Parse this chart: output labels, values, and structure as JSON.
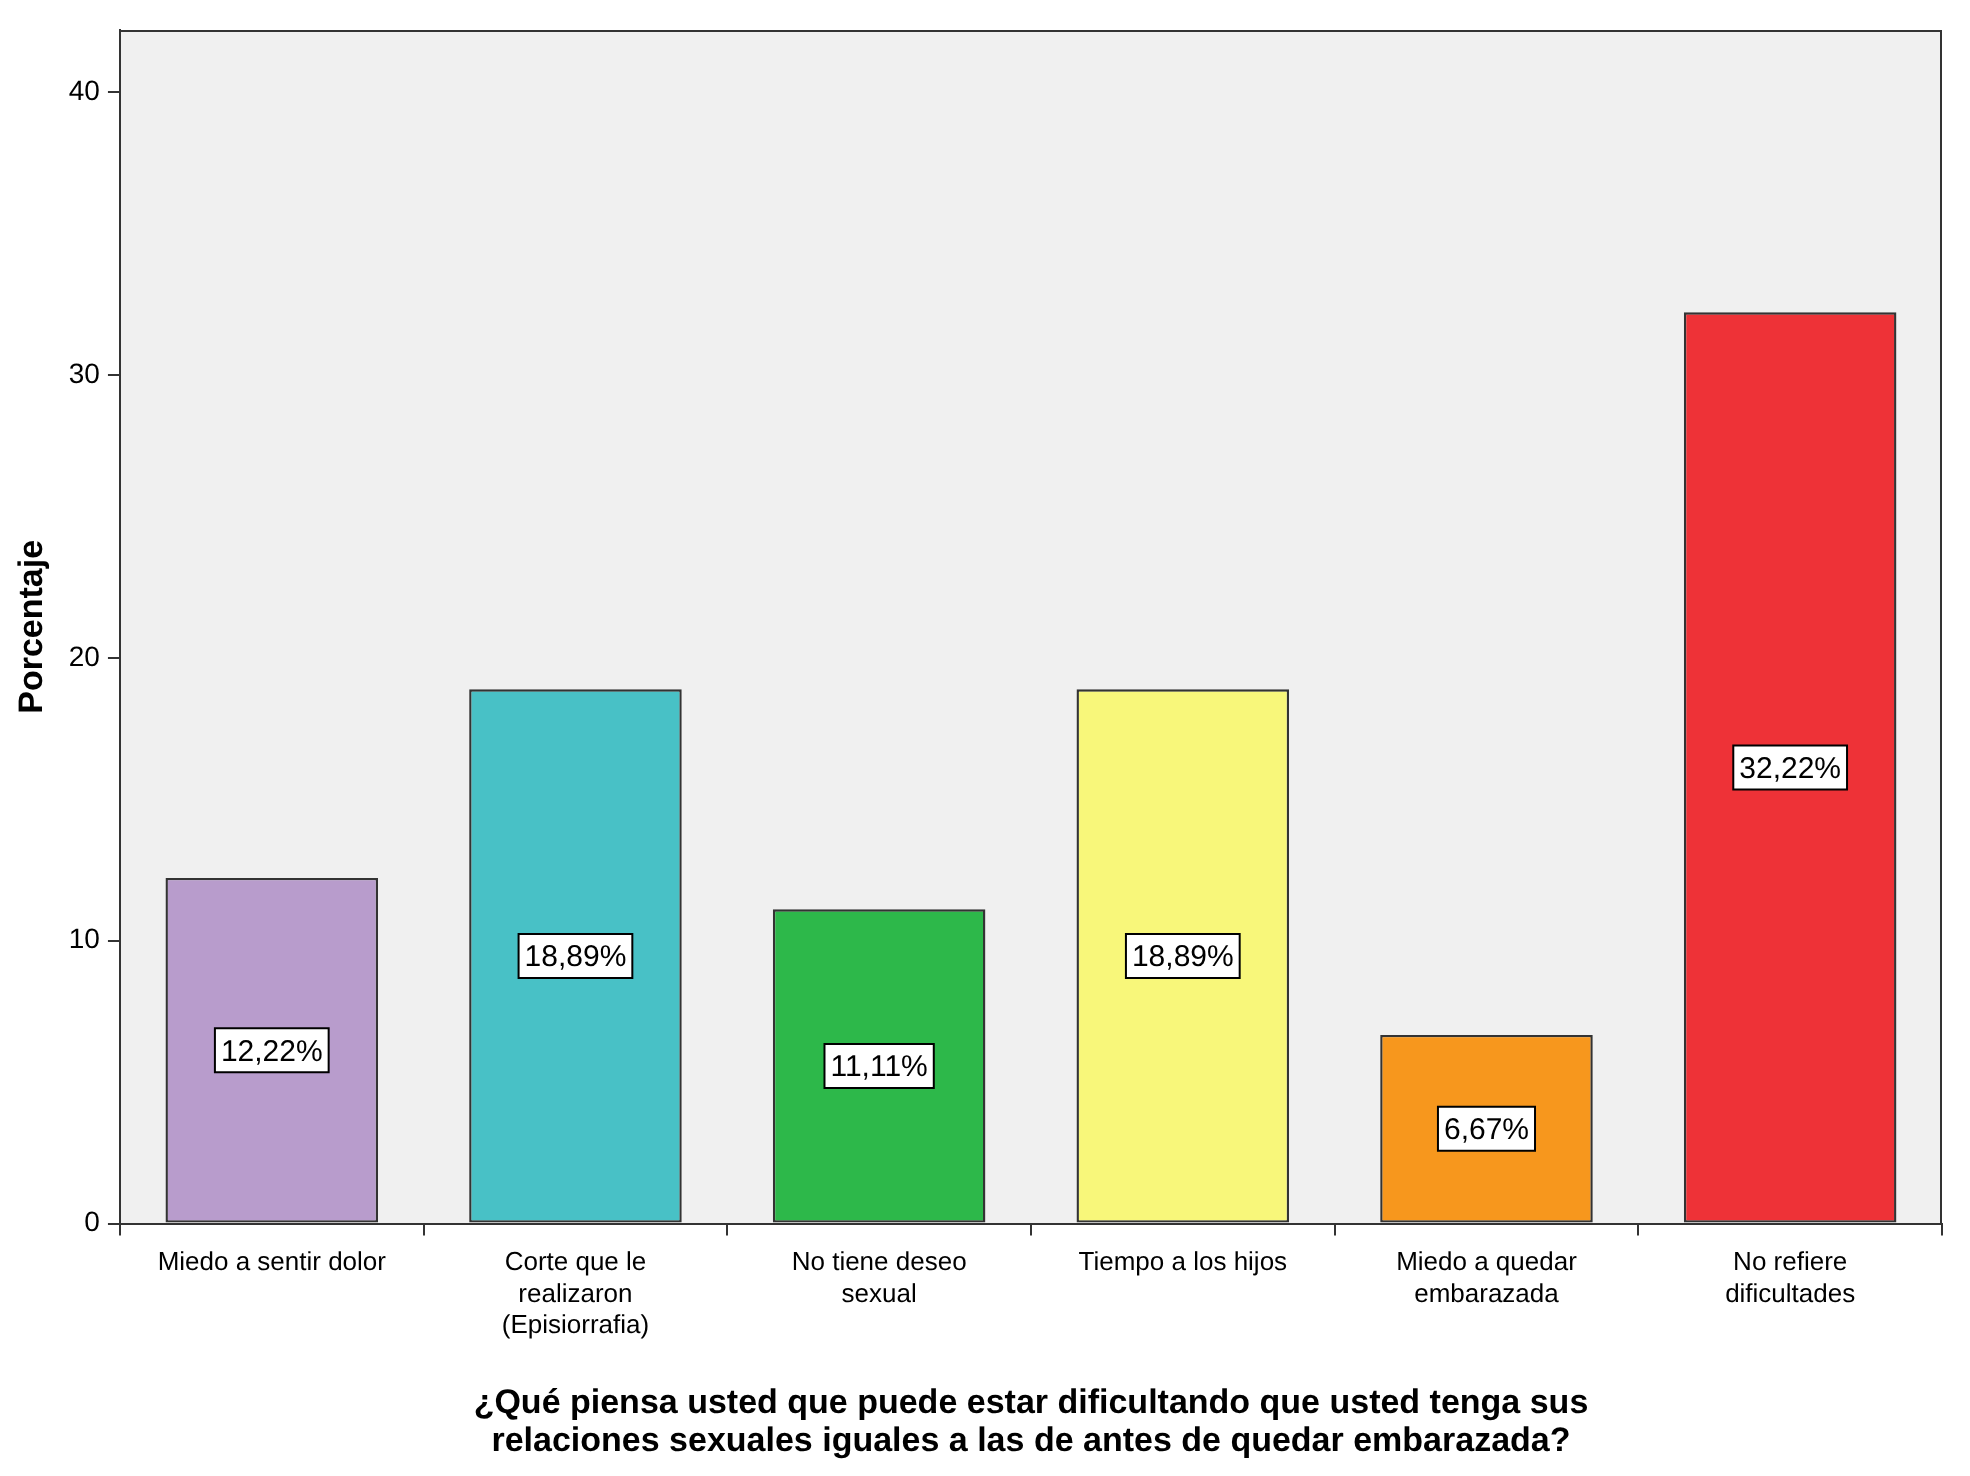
{
  "chart_data": {
    "type": "bar",
    "xlabel": "¿Qué piensa usted que puede estar dificultando que usted tenga sus\nrelaciones sexuales iguales a las de antes de quedar embarazada?",
    "ylabel": "Porcentaje",
    "categories": [
      "Miedo a sentir dolor",
      "Corte que le realizaron (Episiorrafia)",
      "No tiene deseo sexual",
      "Tiempo a los hijos",
      "Miedo a quedar embarazada",
      "No refiere dificultades"
    ],
    "values": [
      12.22,
      18.89,
      11.11,
      18.89,
      6.67,
      32.22
    ],
    "value_labels": [
      "12,22%",
      "18,89%",
      "11,11%",
      "18,89%",
      "6,67%",
      "32,22%"
    ],
    "colors": [
      "#b89ccc",
      "#48c1c6",
      "#2db84a",
      "#f8f77a",
      "#f7971d",
      "#ee3237"
    ],
    "ylim": [
      0,
      42.2
    ],
    "yticks": [
      0,
      10,
      20,
      30,
      40
    ],
    "grid": false,
    "legend": false
  }
}
